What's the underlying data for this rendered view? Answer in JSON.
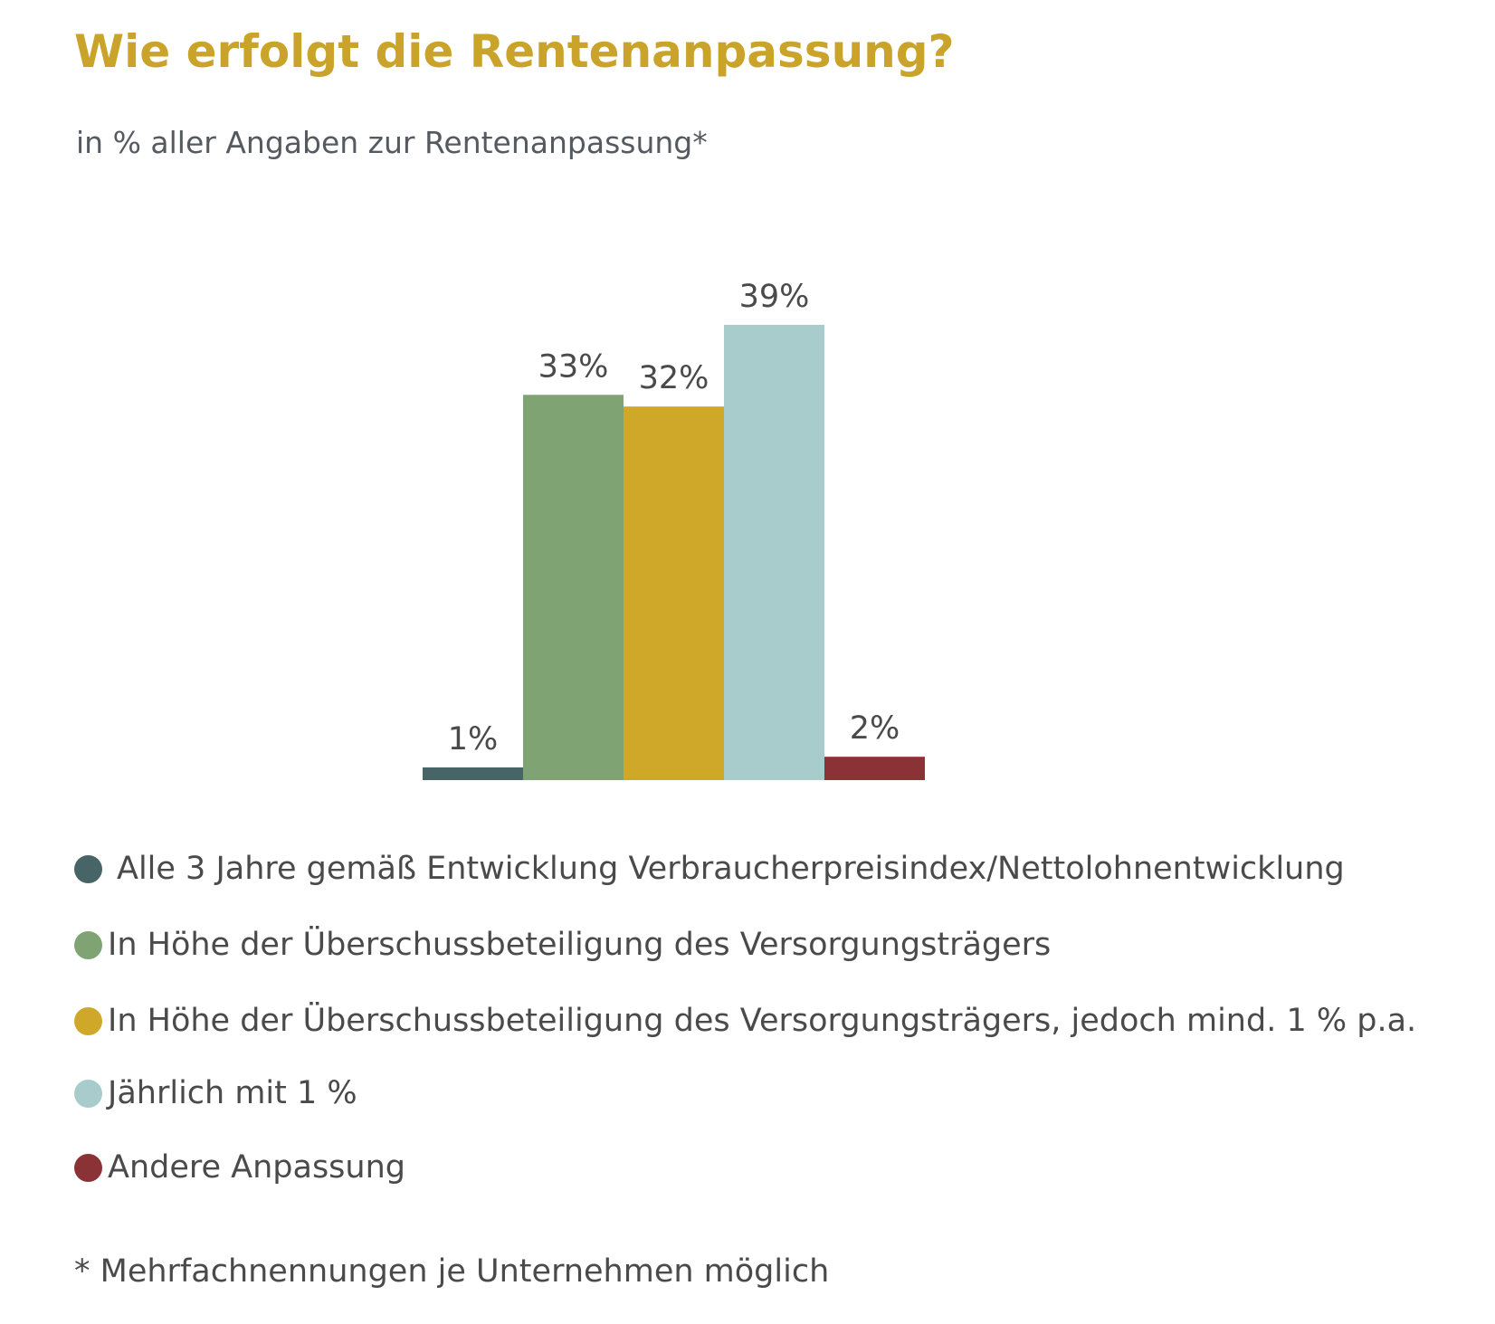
{
  "title": "Wie erfolgt die Rentenanpassung?",
  "subtitle": "in % aller Angaben zur Rentenanpassung*",
  "footnote": "* Mehrfachnennungen je Unternehmen möglich",
  "chart_data": {
    "type": "bar",
    "categories": [
      "Alle 3 Jahre gemäß Entwicklung Verbraucherpreisindex/Nettolohnentwicklung",
      "In Höhe der Überschussbeteiligung des Versorgungsträgers",
      "In Höhe der Überschussbeteiligung des Versorgungsträgers, jedoch mind. 1 % p.a.",
      "Jährlich mit 1 %",
      "Andere Anpassung"
    ],
    "values": [
      1,
      33,
      32,
      39,
      2
    ],
    "value_labels": [
      "1%",
      "33%",
      "32%",
      "39%",
      "2%"
    ],
    "unit": "%",
    "colors": [
      "#476566",
      "#7fa372",
      "#cfa82a",
      "#a8cbcc",
      "#8b3237"
    ],
    "ylim": [
      0,
      40
    ],
    "grid": false,
    "legend_position": "bottom"
  }
}
